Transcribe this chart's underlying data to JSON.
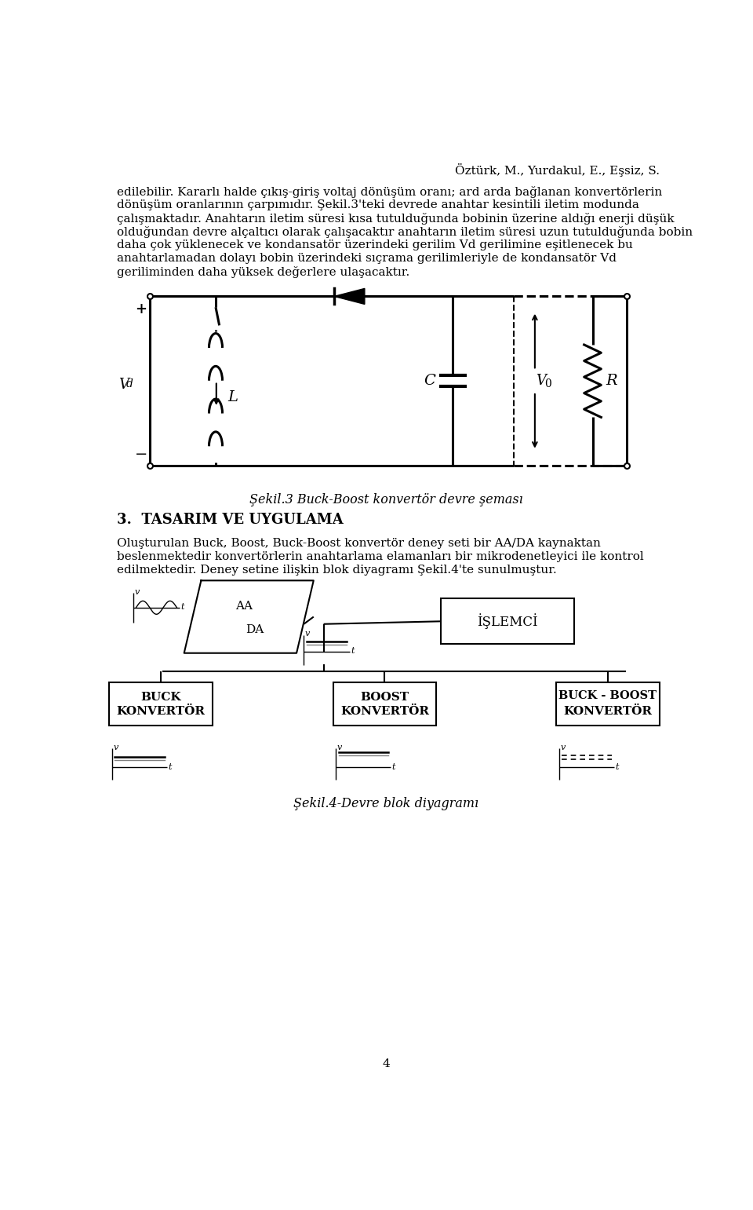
{
  "header": "Öztürk, M., Yurdakul, E., Eşsiz, S.",
  "lines_p1": [
    "edilebilir. Kararlı halde çıkış-giriş voltaj dönüşüm oranı; ard arda bağlanan konvertörlerin",
    "dönüşüm oranlarının çarpımıdır. Şekil.3'teki devrede anahtar kesintili iletim modunda",
    "çalışmaktadır. Anahtarın iletim süresi kısa tutulduğunda bobinin üzerine aldığı enerji düşük",
    "olduğundan devre alçaltıcı olarak çalışacaktır anahtarın iletim süresi uzun tutulduğunda bobin",
    "daha çok yüklenecek ve kondansatör üzerindeki gerilim Vd gerilimine eşitlenecek bu",
    "anahtarlamadan dolayı bobin üzerindeki sıçrama gerilimleriyle de kondansatör Vd",
    "geriliminden daha yüksek değerlere ulaşacaktır."
  ],
  "circuit_caption": "Şekil.3 Buck-Boost konvertör devre şeması",
  "section_title": "3.  TASARIM VE UYGULAMA",
  "lines_p2": [
    "Oluşturulan Buck, Boost, Buck-Boost konvertör deney seti bir AA/DA kaynaktan",
    "beslenmektedir konvertörlerin anahtarlama elamanları bir mikrodenetleyici ile kontrol",
    "edilmektedir. Deney setine ilişkin blok diyagramı Şekil.4'te sunulmuştur."
  ],
  "block_caption": "Şekil.4-Devre blok diyagramı",
  "page_number": "4",
  "bg_color": "#ffffff",
  "text_color": "#000000"
}
